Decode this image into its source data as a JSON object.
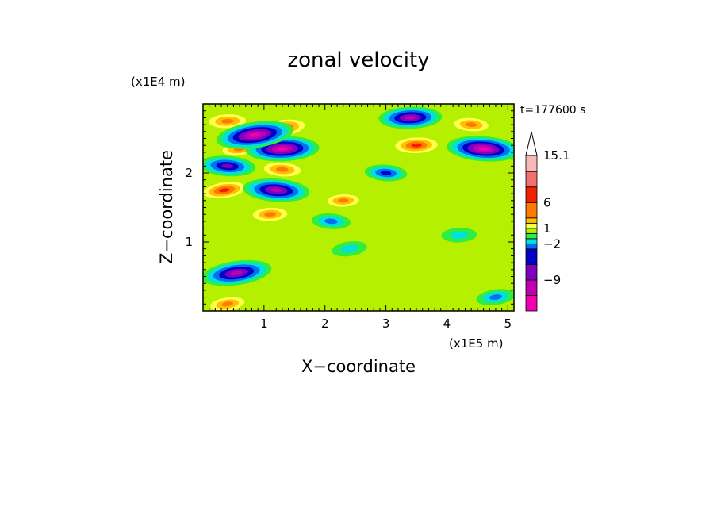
{
  "chart_data": {
    "type": "heatmap",
    "title": "zonal velocity",
    "xlabel": "X−coordinate",
    "ylabel": "Z−coordinate",
    "x_multiplier": "(x1E5 m)",
    "y_multiplier": "(x1E4 m)",
    "time_label": "t=177600 s",
    "xlim": [
      0,
      5.1
    ],
    "ylim": [
      0,
      3.0
    ],
    "x_ticks": [
      1,
      2,
      3,
      4,
      5
    ],
    "y_ticks": [
      1,
      2
    ],
    "colorbar": {
      "levels": [
        -15,
        -12,
        -9,
        -6,
        -3,
        -2,
        -1,
        0,
        1,
        2,
        3,
        6,
        9,
        12,
        15.1
      ],
      "labels": [
        "15.1",
        "6",
        "1",
        "−2",
        "−9"
      ],
      "colors": [
        "#f000b0",
        "#c000b0",
        "#8000c0",
        "#0000c8",
        "#0070f0",
        "#00e0e0",
        "#30ee40",
        "#b4f000",
        "#ffff50",
        "#ffc000",
        "#ff7800",
        "#f02000",
        "#f07070",
        "#f8b8b8"
      ]
    },
    "features": [
      {
        "x": 0.85,
        "z": 2.55,
        "u": -14
      },
      {
        "x": 1.3,
        "z": 2.35,
        "u": -13
      },
      {
        "x": 1.2,
        "z": 1.75,
        "u": -11
      },
      {
        "x": 0.4,
        "z": 2.1,
        "u": -8
      },
      {
        "x": 0.55,
        "z": 0.55,
        "u": -12
      },
      {
        "x": 3.4,
        "z": 2.8,
        "u": -10
      },
      {
        "x": 4.6,
        "z": 2.35,
        "u": -13
      },
      {
        "x": 1.3,
        "z": 2.65,
        "u": 8
      },
      {
        "x": 0.4,
        "z": 2.75,
        "u": 6
      },
      {
        "x": 0.6,
        "z": 2.35,
        "u": 5
      },
      {
        "x": 0.35,
        "z": 1.75,
        "u": 7
      },
      {
        "x": 1.3,
        "z": 2.05,
        "u": 6
      },
      {
        "x": 1.1,
        "z": 1.4,
        "u": 5
      },
      {
        "x": 3.5,
        "z": 2.4,
        "u": 7
      },
      {
        "x": 4.4,
        "z": 2.7,
        "u": 5
      },
      {
        "x": 2.3,
        "z": 1.6,
        "u": 4
      },
      {
        "x": 0.4,
        "z": 0.1,
        "u": 5
      },
      {
        "x": 3.0,
        "z": 2.0,
        "u": -4
      },
      {
        "x": 2.1,
        "z": 1.3,
        "u": -3
      },
      {
        "x": 2.4,
        "z": 0.9,
        "u": -2
      },
      {
        "x": 4.2,
        "z": 1.1,
        "u": -2
      },
      {
        "x": 4.8,
        "z": 0.2,
        "u": -3
      }
    ]
  }
}
